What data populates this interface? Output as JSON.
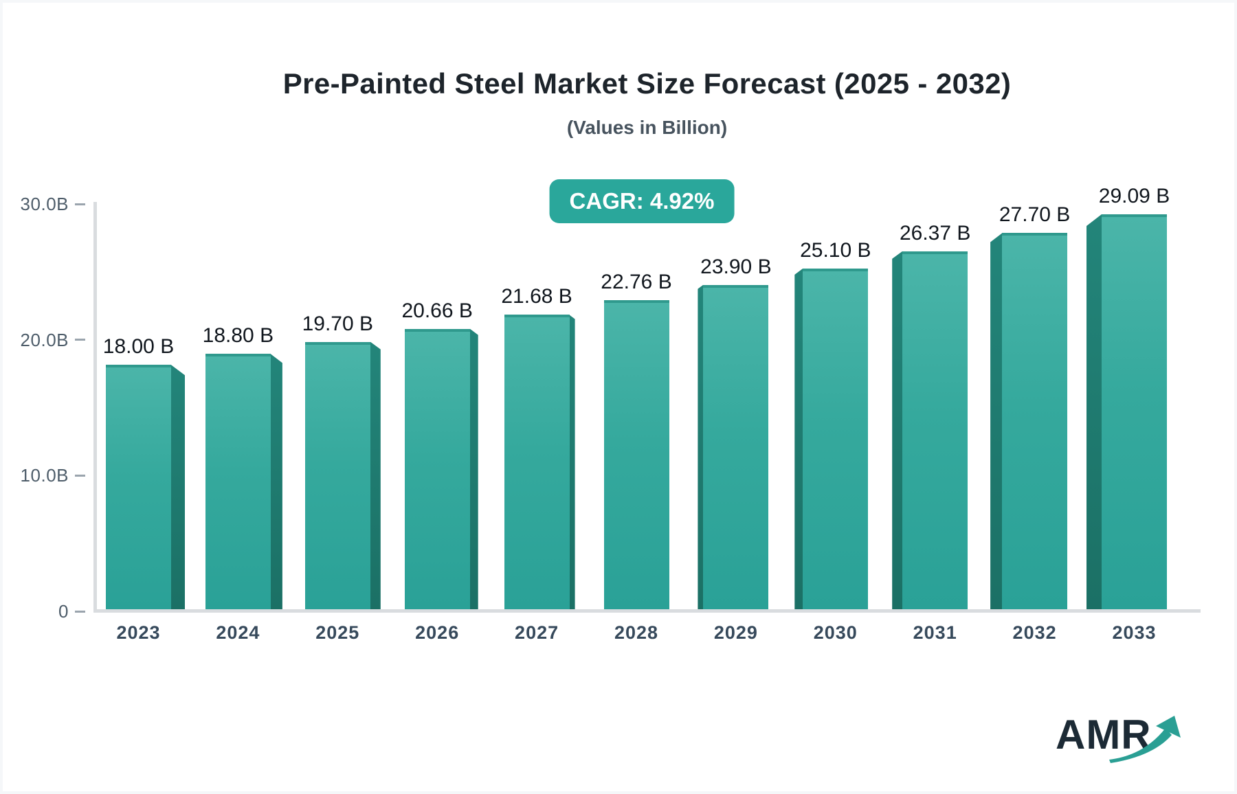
{
  "header": {
    "title": "Pre-Painted Steel Market Size Forecast (2025 - 2032)",
    "subtitle": "(Values in Billion)"
  },
  "badge": {
    "label": "CAGR: 4.92%"
  },
  "chart_data": {
    "type": "bar",
    "title": "Pre-Painted Steel Market Size Forecast (2025 - 2032)",
    "subtitle": "(Values in Billion)",
    "categories": [
      "2023",
      "2024",
      "2025",
      "2026",
      "2027",
      "2028",
      "2029",
      "2030",
      "2031",
      "2032",
      "2033"
    ],
    "values": [
      18.0,
      18.8,
      19.7,
      20.66,
      21.68,
      22.76,
      23.9,
      25.1,
      26.37,
      27.7,
      29.09
    ],
    "value_labels": [
      "18.00 B",
      "18.80 B",
      "19.70 B",
      "20.66 B",
      "21.68 B",
      "22.76 B",
      "23.90 B",
      "25.10 B",
      "26.37 B",
      "27.70 B",
      "29.09 B"
    ],
    "xlabel": "",
    "ylabel": "",
    "ylim": [
      0,
      30
    ],
    "yticks": [
      {
        "value": 30,
        "label": "30.0B"
      },
      {
        "value": 20,
        "label": "20.0B"
      },
      {
        "value": 10,
        "label": "10.0B"
      },
      {
        "value": 0,
        "label": "0"
      }
    ],
    "grid": false,
    "legend": "none",
    "annotation": "CAGR: 4.92%"
  },
  "logo": {
    "text": "AMR"
  },
  "colors": {
    "bar_face_top": "#4bb5a9",
    "bar_face_bottom": "#2aa197",
    "bar_side": "#1e7f74",
    "badge_background": "#2aa79b",
    "badge_text": "#ffffff",
    "axis": "#d9dcdf",
    "title_text": "#1d242b",
    "logo_swoosh": "#2a9f94"
  },
  "icons": {
    "logo_arrow": "growth-arrow-icon"
  }
}
